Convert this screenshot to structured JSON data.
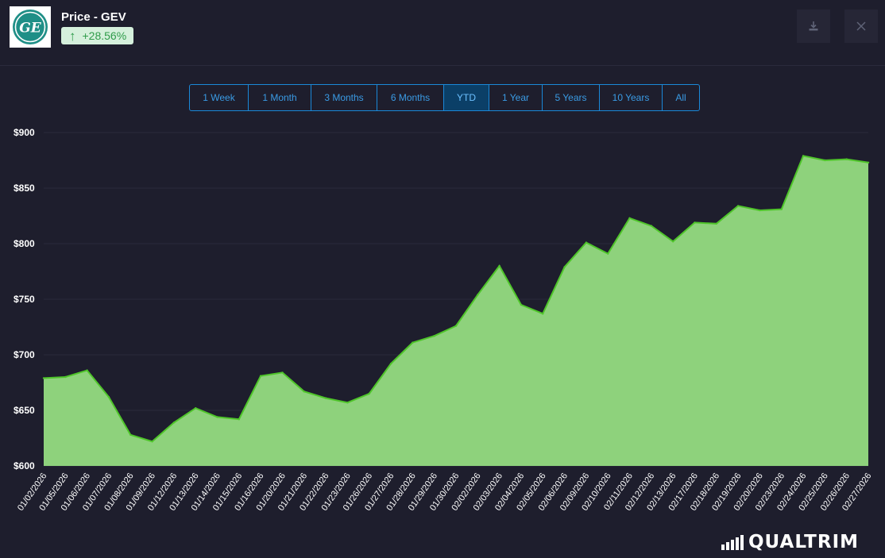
{
  "header": {
    "title": "Price - GEV",
    "change": "+28.56%",
    "logo_text": "GE"
  },
  "toolbar": {
    "download_icon": "download-icon",
    "close_icon": "close-icon"
  },
  "ranges": {
    "items": [
      {
        "label": "1 Week",
        "active": false
      },
      {
        "label": "1 Month",
        "active": false
      },
      {
        "label": "3 Months",
        "active": false
      },
      {
        "label": "6 Months",
        "active": false
      },
      {
        "label": "YTD",
        "active": true
      },
      {
        "label": "1 Year",
        "active": false
      },
      {
        "label": "5 Years",
        "active": false
      },
      {
        "label": "10 Years",
        "active": false
      },
      {
        "label": "All",
        "active": false
      }
    ]
  },
  "brand": {
    "name": "QUALTRIM"
  },
  "colors": {
    "background": "#1e1e2d",
    "area_fill": "#8ed27c",
    "line": "#4fc52a",
    "accent": "#1a88d8",
    "positive": "#2f9b4a"
  },
  "chart_data": {
    "type": "area",
    "title": "",
    "xlabel": "",
    "ylabel": "",
    "ylim": [
      600,
      900
    ],
    "yticks": [
      600,
      650,
      700,
      750,
      800,
      850,
      900
    ],
    "ytick_labels": [
      "$600",
      "$650",
      "$700",
      "$750",
      "$800",
      "$850",
      "$900"
    ],
    "grid": true,
    "x": [
      "01/02/2026",
      "01/05/2026",
      "01/06/2026",
      "01/07/2026",
      "01/08/2026",
      "01/09/2026",
      "01/12/2026",
      "01/13/2026",
      "01/14/2026",
      "01/15/2026",
      "01/16/2026",
      "01/20/2026",
      "01/21/2026",
      "01/22/2026",
      "01/23/2026",
      "01/26/2026",
      "01/27/2026",
      "01/28/2026",
      "01/29/2026",
      "01/30/2026",
      "02/02/2026",
      "02/03/2026",
      "02/04/2026",
      "02/05/2026",
      "02/06/2026",
      "02/09/2026",
      "02/10/2026",
      "02/11/2026",
      "02/12/2026",
      "02/13/2026",
      "02/17/2026",
      "02/18/2026",
      "02/19/2026",
      "02/20/2026",
      "02/23/2026",
      "02/24/2026",
      "02/25/2026",
      "02/26/2026",
      "02/27/2026"
    ],
    "series": [
      {
        "values": [
          679,
          680,
          686,
          662,
          628,
          622,
          639,
          652,
          644,
          642,
          681,
          684,
          667,
          661,
          657,
          665,
          692,
          711,
          717,
          726,
          754,
          780,
          745,
          737,
          779,
          801,
          791,
          823,
          816,
          802,
          819,
          818,
          834,
          830,
          831,
          879,
          875,
          876,
          873
        ]
      }
    ]
  }
}
